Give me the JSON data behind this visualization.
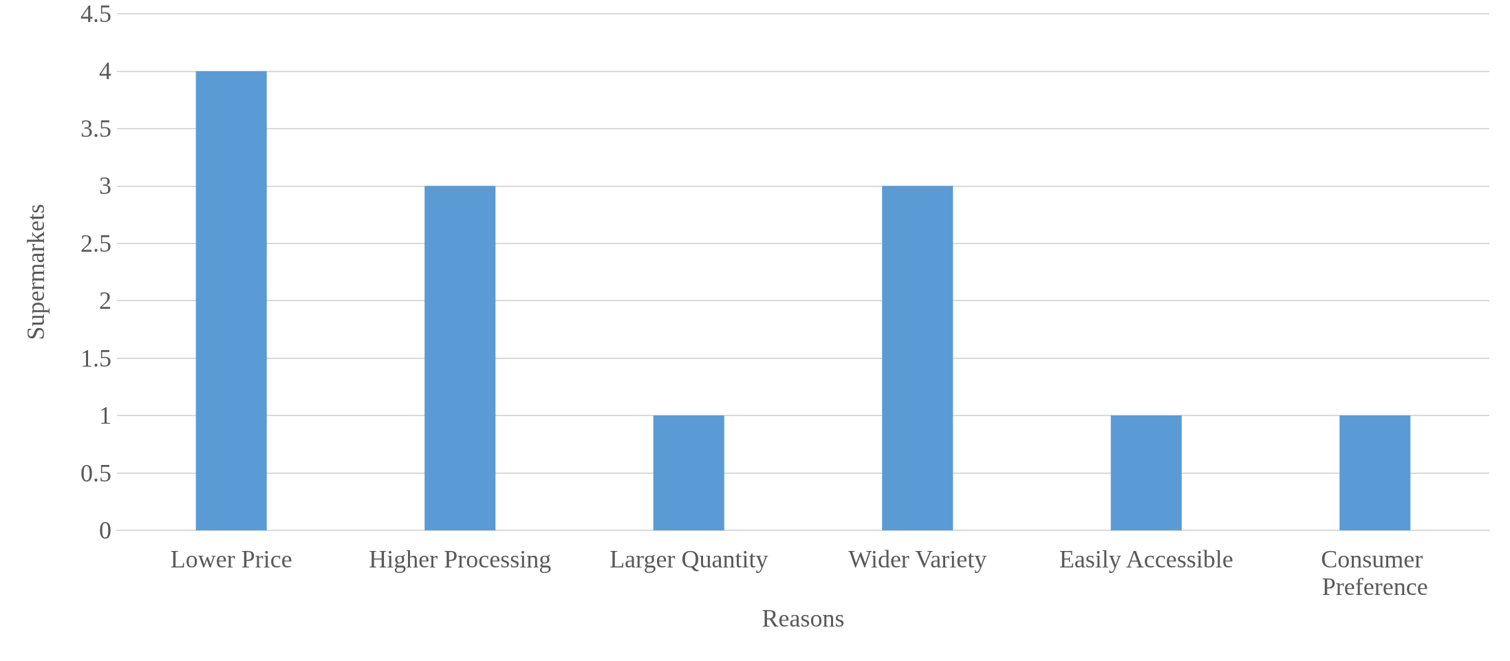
{
  "chart_data": {
    "type": "bar",
    "xlabel": "Reasons",
    "ylabel": "Supermarkets",
    "categories": [
      "Lower Price",
      "Higher Processing",
      "Larger Quantity",
      "Wider Variety",
      "Easily Accessible",
      "Consumer Preference"
    ],
    "values": [
      4,
      3,
      1,
      3,
      1,
      1
    ],
    "color": "#5b9bd5",
    "ylim": [
      0,
      4.5
    ],
    "yticks": [
      0,
      0.5,
      1,
      1.5,
      2,
      2.5,
      3,
      3.5,
      4,
      4.5
    ],
    "grid": "y"
  }
}
